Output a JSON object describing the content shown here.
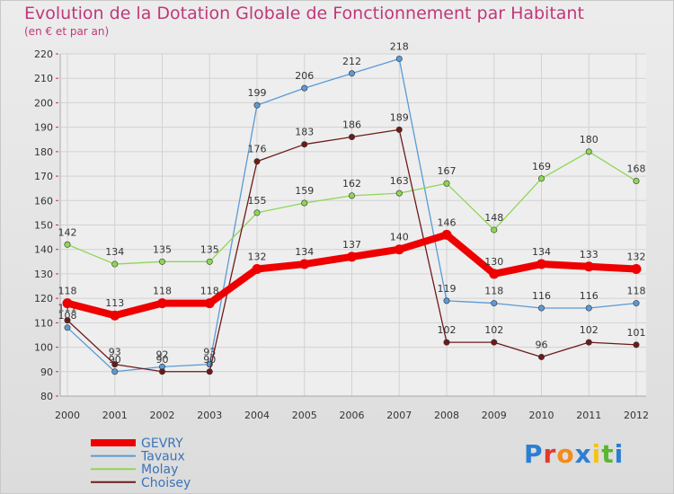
{
  "chart_data": {
    "type": "line",
    "title": "Evolution de la Dotation Globale de Fonctionnement par Habitant",
    "subtitle": "(en € et par an)",
    "x": [
      "2000",
      "2001",
      "2002",
      "2003",
      "2004",
      "2005",
      "2006",
      "2007",
      "2008",
      "2009",
      "2010",
      "2011",
      "2012"
    ],
    "ylim": [
      80,
      220
    ],
    "yticks": [
      80,
      90,
      100,
      110,
      120,
      130,
      140,
      150,
      160,
      170,
      180,
      190,
      200,
      210,
      220
    ],
    "grid": true,
    "legend_position": "bottom-left",
    "series": [
      {
        "name": "Tavaux",
        "color": "#5a9ad6",
        "values": [
          108,
          90,
          92,
          93,
          199,
          206,
          212,
          218,
          119,
          118,
          116,
          116,
          118
        ],
        "labels": [
          "108",
          "90",
          "92",
          "93",
          "199",
          "206",
          "212",
          "218",
          "119",
          "118",
          "116",
          "116",
          "118"
        ]
      },
      {
        "name": "Molay",
        "color": "#8fd655",
        "values": [
          142,
          134,
          135,
          135,
          155,
          159,
          162,
          163,
          167,
          148,
          169,
          180,
          168
        ],
        "labels": [
          "142",
          "134",
          "135",
          "135",
          "155",
          "159",
          "162",
          "163",
          "167",
          "148",
          "169",
          "180",
          "168"
        ]
      },
      {
        "name": "Choisey",
        "color": "#6e1a1a",
        "values": [
          111,
          93,
          90,
          90,
          176,
          183,
          186,
          189,
          102,
          102,
          96,
          102,
          101
        ],
        "labels": [
          "111",
          "93",
          "90",
          "90",
          "176",
          "183",
          "186",
          "189",
          "102",
          "102",
          "96",
          "102",
          "101"
        ]
      },
      {
        "name": "GEVRY",
        "color": "#ee0000",
        "values": [
          118,
          113,
          118,
          118,
          132,
          134,
          137,
          140,
          146,
          130,
          134,
          133,
          132
        ],
        "labels": [
          "118",
          "113",
          "118",
          "118",
          "132",
          "134",
          "137",
          "140",
          "146",
          "130",
          "134",
          "133",
          "132"
        ]
      }
    ]
  },
  "legend": {
    "items": [
      {
        "name": "GEVRY",
        "color": "#ee0000"
      },
      {
        "name": "Tavaux",
        "color": "#5a9ad6"
      },
      {
        "name": "Molay",
        "color": "#8fd655"
      },
      {
        "name": "Choisey",
        "color": "#6e1a1a"
      }
    ]
  },
  "brand": {
    "letters": [
      "P",
      "r",
      "o",
      "x",
      "i",
      "t",
      "i"
    ]
  }
}
